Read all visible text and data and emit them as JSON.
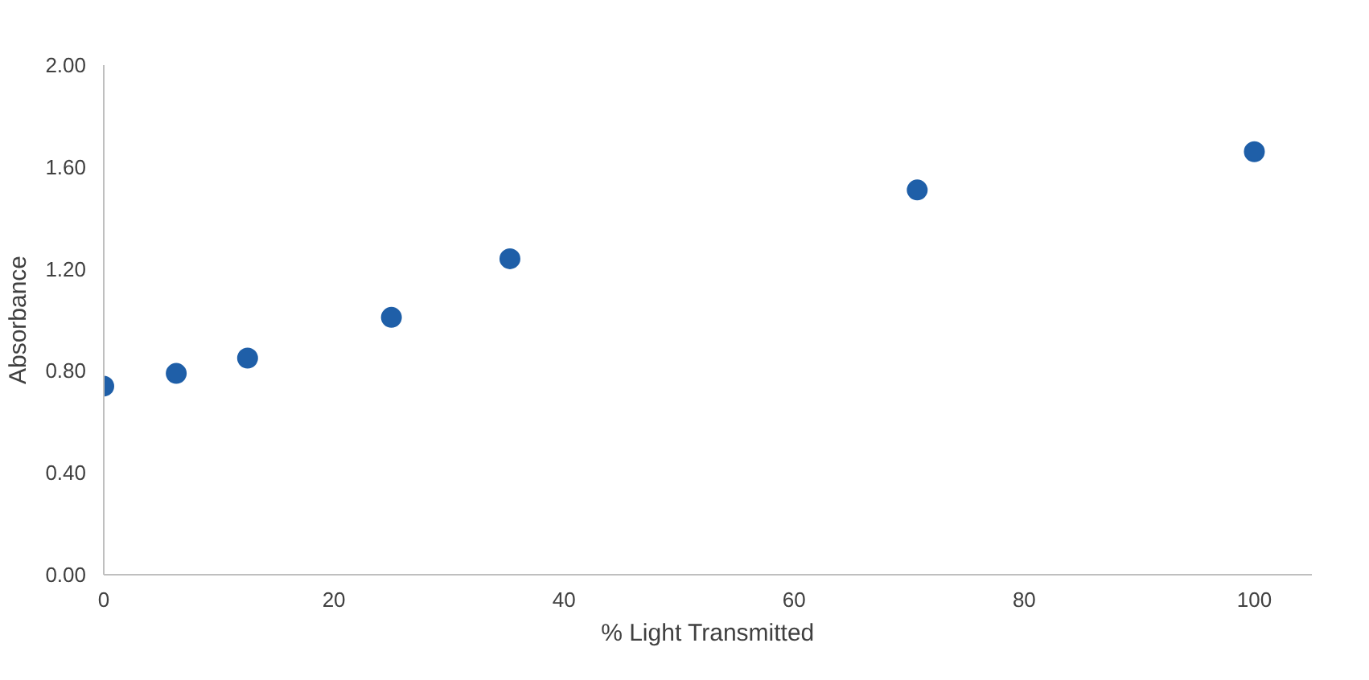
{
  "chart_data": {
    "type": "scatter",
    "xlabel": "% Light Transmitted",
    "ylabel": "Absorbance",
    "x": [
      0,
      6.3,
      12.5,
      25,
      35.3,
      70.7,
      100
    ],
    "series": [
      {
        "color": "#1f5fa8",
        "values": [
          0.74,
          0.79,
          0.85,
          1.01,
          1.24,
          1.51,
          1.66
        ]
      }
    ],
    "xlim": [
      0,
      105
    ],
    "xticks": [
      0,
      20,
      40,
      60,
      80,
      100
    ],
    "ylim": [
      0,
      2
    ],
    "yticks": [
      {
        "value": 0,
        "label": "0.00"
      },
      {
        "value": 0.4,
        "label": "0.40"
      },
      {
        "value": 0.8,
        "label": "0.80"
      },
      {
        "value": 1.2,
        "label": "1.20"
      },
      {
        "value": 1.6,
        "label": "1.60"
      },
      {
        "value": 2,
        "label": "2.00"
      }
    ],
    "marker": "circle",
    "grid": false
  }
}
